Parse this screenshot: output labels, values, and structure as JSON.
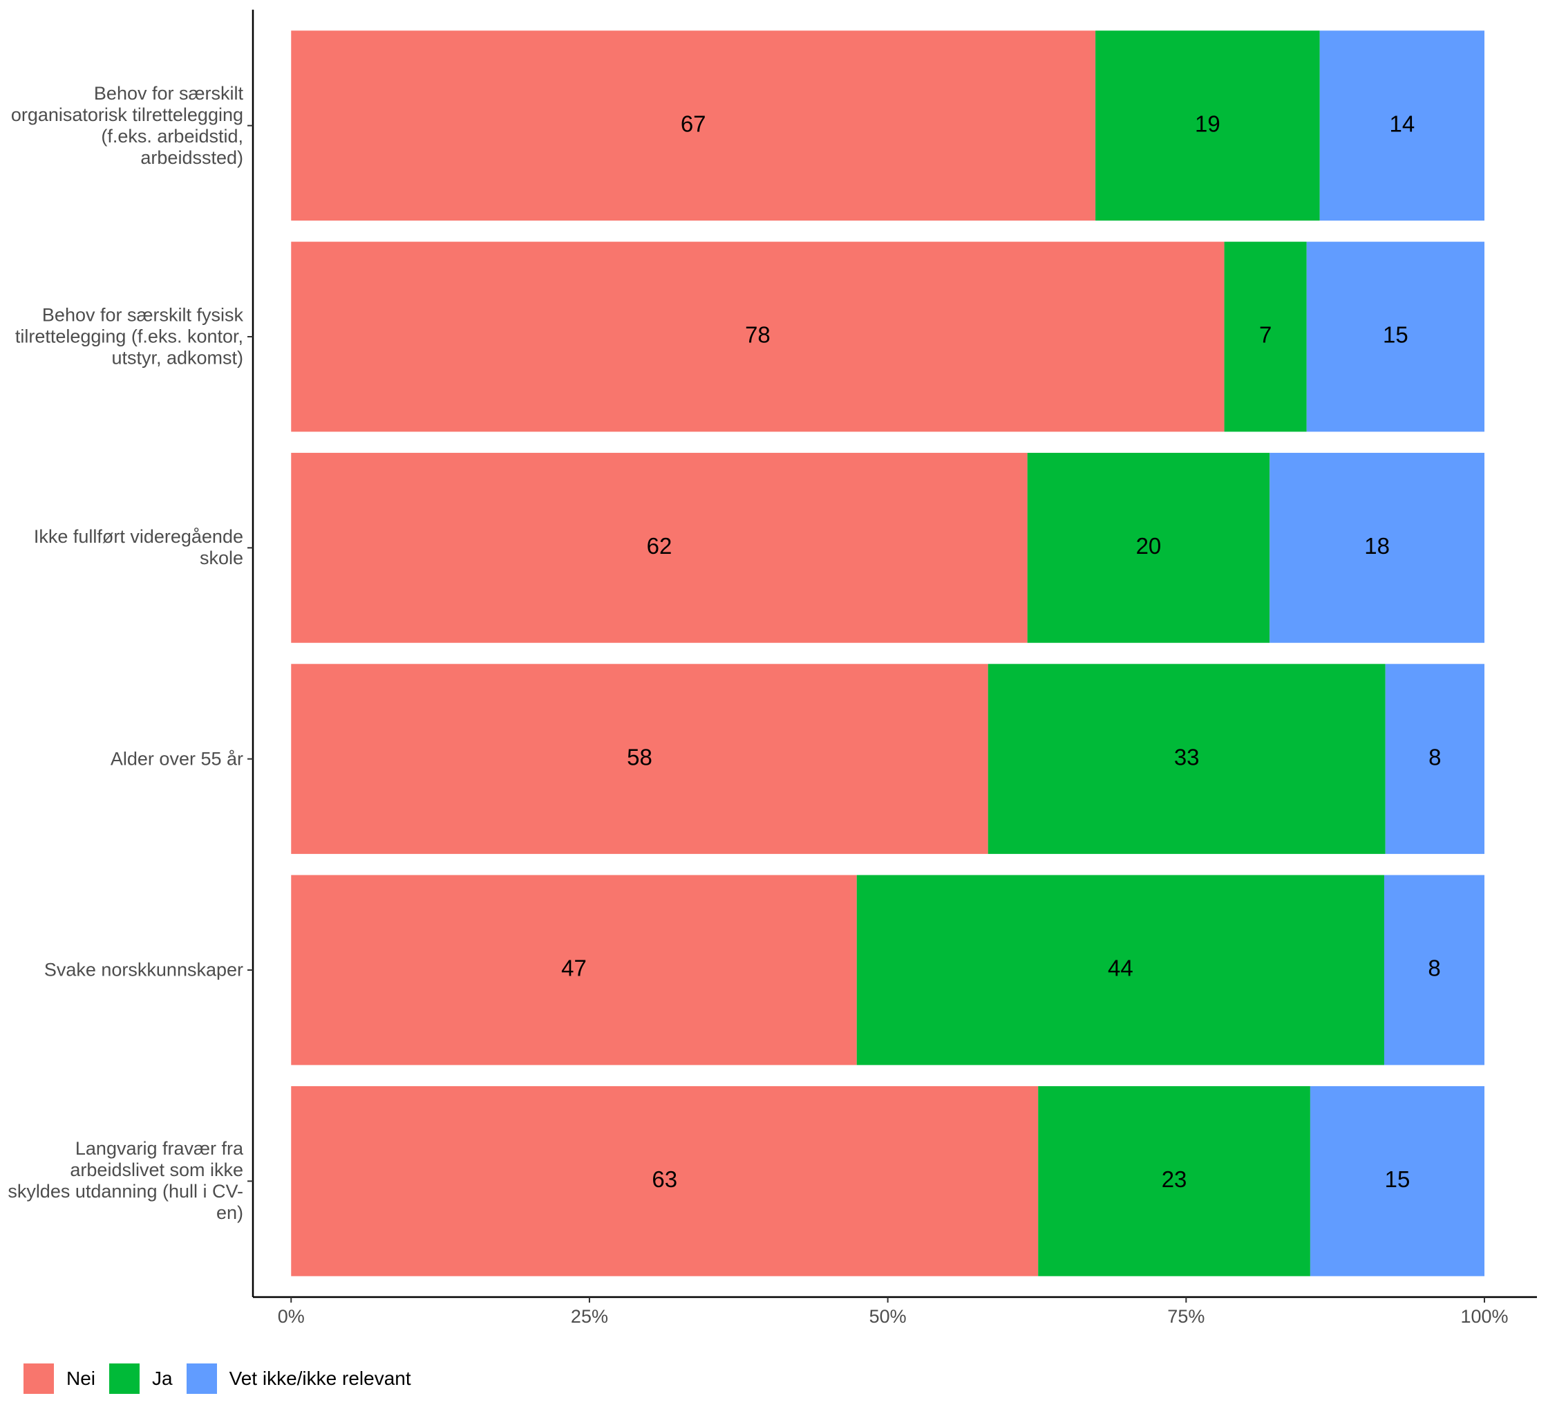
{
  "chart_data": {
    "type": "stacked-bar-horizontal",
    "categories": [
      "Behov for særskilt organisatorisk tilrettelegging (f.eks. arbeidstid, arbeidssted)",
      "Behov for særskilt fysisk tilrettelegging (f.eks. kontor, utstyr, adkomst)",
      "Ikke fullført videregående skole",
      "Alder over 55 år",
      "Svake norskkunnskaper",
      "Langvarig fravær fra arbeidslivet som ikke skyldes utdanning (hull i CV-en)"
    ],
    "series": [
      {
        "name": "Nei",
        "color": "#f8766d",
        "values": [
          67.4,
          78.2,
          61.7,
          58.4,
          47.4,
          62.6
        ],
        "value_labels": [
          "67",
          "78",
          "62",
          "58",
          "47",
          "63"
        ]
      },
      {
        "name": "Ja",
        "color": "#00ba38",
        "values": [
          18.8,
          6.9,
          20.3,
          33.3,
          44.2,
          22.8
        ],
        "value_labels": [
          "19",
          "7",
          "20",
          "33",
          "44",
          "23"
        ]
      },
      {
        "name": "Vet ikke/ikke relevant",
        "color": "#619cff",
        "values": [
          13.8,
          14.9,
          18.0,
          8.3,
          8.4,
          14.6
        ],
        "value_labels": [
          "14",
          "15",
          "18",
          "8",
          "8",
          "15"
        ]
      }
    ],
    "xlim": [
      -3.2,
      104.4
    ],
    "xticks": [
      {
        "value": 0,
        "label": "0%"
      },
      {
        "value": 25,
        "label": "25%"
      },
      {
        "value": 50,
        "label": "50%"
      },
      {
        "value": 75,
        "label": "75%"
      },
      {
        "value": 100,
        "label": "100%"
      }
    ],
    "legend": "bottom-left"
  }
}
